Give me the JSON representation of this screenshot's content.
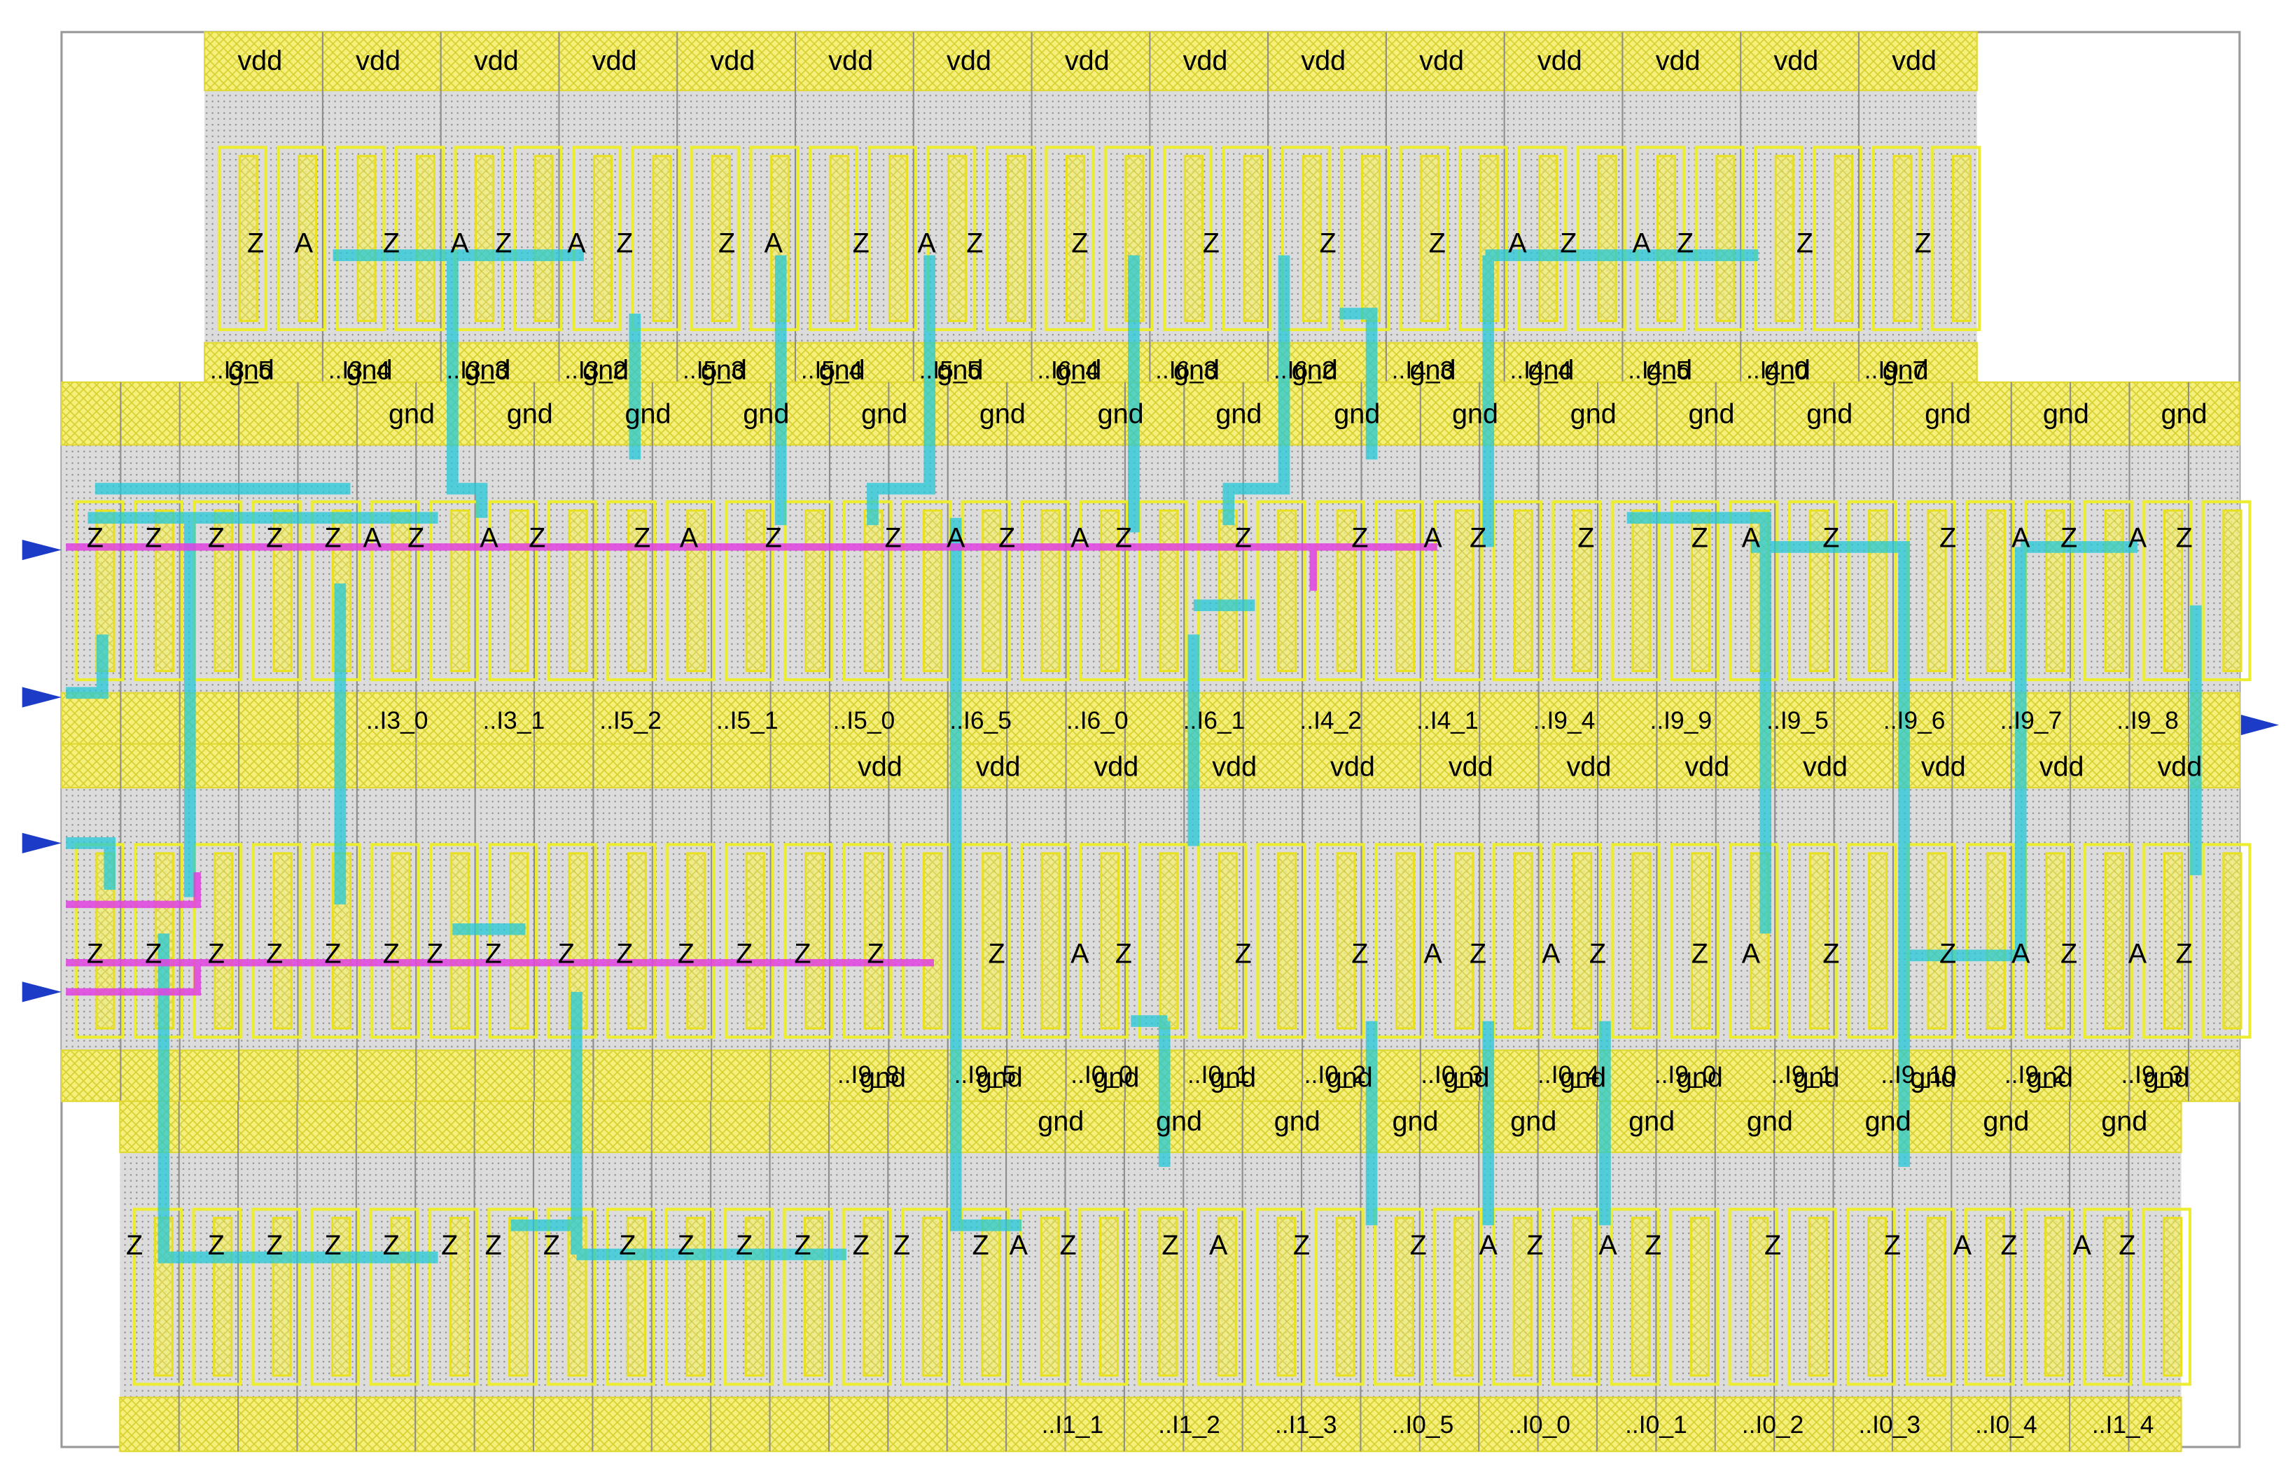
{
  "rows": [
    {
      "top_labels": [
        "vdd",
        "vdd",
        "vdd",
        "vdd",
        "vdd",
        "vdd",
        "vdd",
        "vdd",
        "vdd",
        "vdd",
        "vdd",
        "vdd",
        "vdd",
        "vdd",
        "vdd"
      ],
      "pins": [
        "Z",
        "A",
        "Z",
        "A",
        "Z",
        "A",
        "Z",
        "Z",
        "A",
        "Z",
        "A",
        "Z",
        "Z",
        "Z",
        "Z",
        "Z",
        "A",
        "Z",
        "A",
        "Z",
        "Z",
        "Z"
      ],
      "bottom_labels": [
        "gnd",
        "gnd",
        "gnd",
        "gnd",
        "gnd",
        "gnd",
        "gnd",
        "gnd",
        "gnd",
        "gnd",
        "gnd",
        "gnd",
        "gnd",
        "gnd",
        "gnd"
      ],
      "instances": [
        "..I3_5",
        "..I3_4",
        "..I3_3",
        "..I3_2",
        "..I5_3",
        "..I5_4",
        "..I5_5",
        "..I6_4",
        "..I6_3",
        "..I6_2",
        "..I4_3",
        "..I4_4",
        "..I4_5",
        "..I4_0",
        "..I9_7"
      ]
    },
    {
      "top_labels": [
        "gnd",
        "gnd",
        "gnd",
        "gnd",
        "gnd",
        "gnd",
        "gnd",
        "gnd",
        "gnd",
        "gnd",
        "gnd",
        "gnd",
        "gnd",
        "gnd",
        "gnd",
        "gnd"
      ],
      "pins": [
        "Z",
        "Z",
        "Z",
        "Z",
        "Z",
        "A",
        "Z",
        "A",
        "Z",
        "Z",
        "A",
        "Z",
        "Z",
        "A",
        "Z",
        "A",
        "Z",
        "Z",
        "Z",
        "A",
        "Z",
        "Z",
        "Z",
        "A",
        "Z",
        "Z",
        "A",
        "Z",
        "A",
        "Z"
      ],
      "instances": [
        "..I3_0",
        "..I3_1",
        "..I5_2",
        "..I5_1",
        "..I5_0",
        "..I6_5",
        "..I6_0",
        "..I6_1",
        "..I4_2",
        "..I4_1",
        "..I9_4",
        "..I9_9",
        "..I9_5",
        "..I9_6",
        "..I9_7",
        "..I9_8"
      ]
    },
    {
      "top_labels": [
        "vdd",
        "vdd",
        "vdd",
        "vdd",
        "vdd",
        "vdd",
        "vdd",
        "vdd",
        "vdd",
        "vdd",
        "vdd",
        "vdd"
      ],
      "pins": [
        "Z",
        "Z",
        "Z",
        "Z",
        "Z",
        "Z",
        "Z",
        "Z",
        "Z",
        "Z",
        "Z",
        "Z",
        "Z",
        "Z",
        "Z",
        "A",
        "Z",
        "Z",
        "Z",
        "A",
        "Z",
        "A",
        "Z",
        "Z",
        "A",
        "Z",
        "Z",
        "A",
        "Z",
        "A",
        "Z"
      ],
      "bottom_labels": [
        "gnd",
        "gnd",
        "gnd",
        "gnd",
        "gnd",
        "gnd",
        "gnd",
        "gnd",
        "gnd",
        "gnd",
        "gnd",
        "gnd"
      ],
      "instances": [
        "..I9_8",
        "..I9_5",
        "..I0_0",
        "..I0_1",
        "..I0_2",
        "..I0_3",
        "..I0_4",
        "..I9_0",
        "..I9_1",
        "..I9_10",
        "..I9_2",
        "..I9_3"
      ]
    },
    {
      "top_labels": [
        "gnd",
        "gnd",
        "gnd",
        "gnd",
        "gnd",
        "gnd",
        "gnd",
        "gnd",
        "gnd",
        "gnd"
      ],
      "pins": [
        "Z",
        "Z",
        "Z",
        "Z",
        "Z",
        "Z",
        "Z",
        "Z",
        "Z",
        "Z",
        "Z",
        "Z",
        "Z",
        "Z",
        "Z",
        "A",
        "Z",
        "Z",
        "A",
        "Z",
        "Z",
        "A",
        "Z",
        "A",
        "Z",
        "Z",
        "Z",
        "A",
        "Z",
        "A",
        "Z"
      ],
      "instances": [
        "..I1_1",
        "..I1_2",
        "..I1_3",
        "..I0_5",
        "..I0_0",
        "..I0_1",
        "..I0_2",
        "..I0_3",
        "..I0_4",
        "..I1_4"
      ]
    }
  ]
}
